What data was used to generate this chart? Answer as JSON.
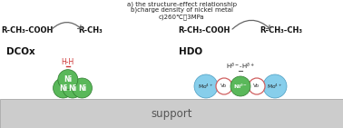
{
  "fig_width": 3.78,
  "fig_height": 1.41,
  "dpi": 100,
  "bg_color": "#ffffff",
  "support_color": "#cccccc",
  "support_edge": "#999999",
  "title_lines": [
    "a) the structure-effect relationship",
    "b)charge density of nickel metal",
    "c)260℃，3MPa"
  ],
  "left_reactant": "R-CH₃-COOH",
  "left_product": "R-CH₃",
  "right_reactant": "R-CH₃-COOH",
  "right_product": "R-CH₃-CH₃",
  "label_DCOx": "DCOx",
  "label_HDO": "HDO",
  "ni_color": "#5ab85a",
  "ni_edge": "#2d7a2d",
  "mo_color": "#87ceeb",
  "mo_edge": "#4a9cc0",
  "vo_edge": "#d06060",
  "vo_face": "#ffffff",
  "hh_color": "#cc3333",
  "arrow_color": "#666666",
  "support_text_color": "#555555"
}
